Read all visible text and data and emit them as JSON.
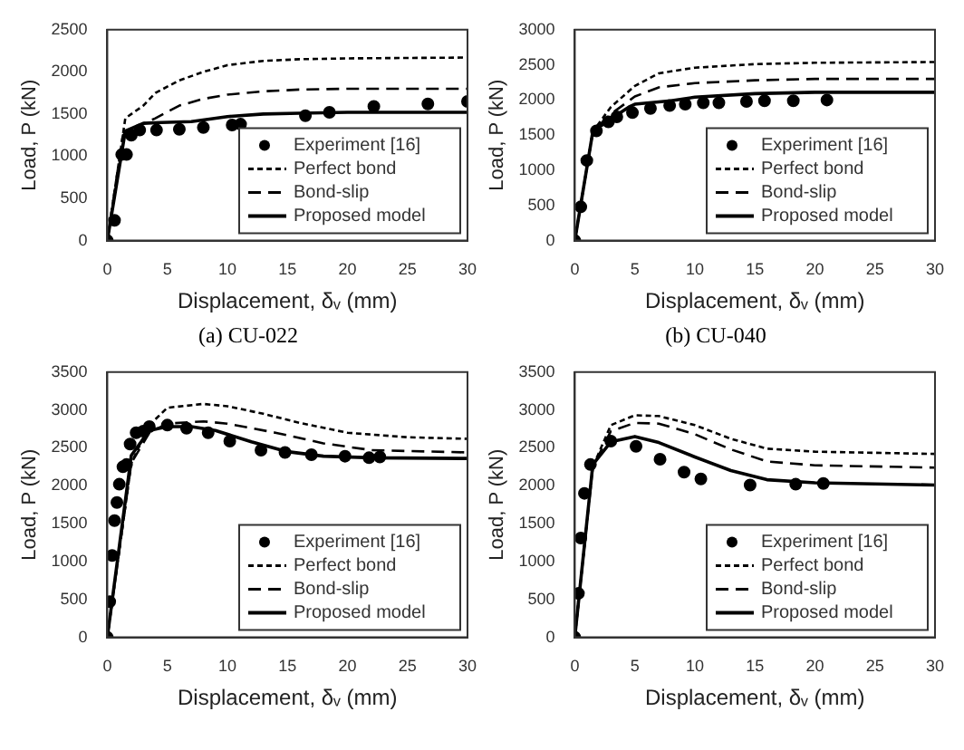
{
  "chart_data": [
    {
      "type": "line",
      "xlabel": "Displacement, δᵥ (mm)",
      "ylabel": "Load, P (kN)",
      "annotations": [
        "(a) CU-022"
      ],
      "xlim": [
        0,
        30
      ],
      "xticks": [
        0,
        5,
        10,
        15,
        20,
        25,
        30
      ],
      "ylim": [
        0,
        2500
      ],
      "yticks": [
        0,
        500,
        1000,
        1500,
        2000,
        2500
      ],
      "legend": "bottom right",
      "series": [
        {
          "name": "Experiment [16]",
          "type": "scatter",
          "marker": "circle",
          "color": "#000000",
          "x": [
            0,
            0.6,
            1.2,
            1.6,
            2,
            2.7,
            4.1,
            6,
            8,
            10.4,
            11.1,
            16.5,
            18.5,
            22.2,
            26.7,
            30
          ],
          "values": [
            0,
            240,
            1020,
            1020,
            1250,
            1310,
            1310,
            1320,
            1340,
            1370,
            1380,
            1480,
            1520,
            1590,
            1620,
            1650
          ]
        },
        {
          "name": "Perfect bond",
          "type": "line",
          "line_style": "dotted",
          "color": "#000000",
          "x": [
            0,
            1.5,
            3,
            4,
            6,
            8,
            10,
            13,
            16,
            20,
            30
          ],
          "values": [
            0,
            1450,
            1600,
            1750,
            1900,
            2000,
            2080,
            2130,
            2150,
            2160,
            2170
          ]
        },
        {
          "name": "Bond-slip",
          "type": "line",
          "line_style": "dashed",
          "color": "#000000",
          "x": [
            0,
            1.3,
            2.5,
            4,
            6,
            8,
            10,
            13,
            16,
            20,
            30
          ],
          "values": [
            0,
            1250,
            1350,
            1450,
            1600,
            1680,
            1730,
            1770,
            1790,
            1800,
            1800
          ]
        },
        {
          "name": "Proposed model",
          "type": "line",
          "line_style": "solid",
          "color": "#000000",
          "x": [
            0,
            1.5,
            3,
            4.5,
            7,
            10,
            13,
            16,
            20,
            30
          ],
          "values": [
            0,
            1300,
            1390,
            1400,
            1410,
            1470,
            1500,
            1510,
            1520,
            1520
          ]
        }
      ]
    },
    {
      "type": "line",
      "xlabel": "Displacement, δᵥ (mm)",
      "ylabel": "Load, P (kN)",
      "annotations": [
        "(b) CU-040"
      ],
      "xlim": [
        0,
        30
      ],
      "xticks": [
        0,
        5,
        10,
        15,
        20,
        25,
        30
      ],
      "ylim": [
        0,
        3000
      ],
      "yticks": [
        0,
        500,
        1000,
        1500,
        2000,
        2500,
        3000
      ],
      "legend": "bottom right",
      "series": [
        {
          "name": "Experiment [16]",
          "type": "scatter",
          "marker": "circle",
          "color": "#000000",
          "x": [
            0,
            0.5,
            1,
            1.8,
            2.8,
            3.5,
            4.8,
            6.3,
            7.9,
            9.2,
            10.7,
            12,
            14.3,
            15.8,
            18.2,
            21
          ],
          "values": [
            0,
            480,
            1140,
            1560,
            1690,
            1760,
            1820,
            1880,
            1920,
            1940,
            1960,
            1960,
            1980,
            1990,
            1990,
            2000
          ]
        },
        {
          "name": "Perfect bond",
          "type": "line",
          "line_style": "dotted",
          "color": "#000000",
          "x": [
            0,
            1.5,
            3,
            5,
            7,
            10,
            15,
            20,
            30
          ],
          "values": [
            0,
            1550,
            1900,
            2200,
            2380,
            2460,
            2510,
            2530,
            2540
          ]
        },
        {
          "name": "Bond-slip",
          "type": "line",
          "line_style": "dashed",
          "color": "#000000",
          "x": [
            0,
            1.5,
            3,
            5,
            7,
            10,
            15,
            20,
            30
          ],
          "values": [
            0,
            1550,
            1800,
            2050,
            2180,
            2240,
            2280,
            2300,
            2300
          ]
        },
        {
          "name": "Proposed model",
          "type": "line",
          "line_style": "solid",
          "color": "#000000",
          "x": [
            0,
            1.5,
            3,
            4.5,
            5,
            8,
            10,
            15,
            20,
            30
          ],
          "values": [
            0,
            1550,
            1730,
            1900,
            1940,
            1990,
            2040,
            2090,
            2110,
            2110
          ]
        }
      ]
    },
    {
      "type": "line",
      "xlabel": "Displacement, δᵥ (mm)",
      "ylabel": "Load, P (kN)",
      "xlim": [
        0,
        30
      ],
      "xticks": [
        0,
        5,
        10,
        15,
        20,
        25,
        30
      ],
      "ylim": [
        0,
        3500
      ],
      "yticks": [
        0,
        500,
        1000,
        1500,
        2000,
        2500,
        3000,
        3500
      ],
      "legend": "bottom right",
      "series": [
        {
          "name": "Experiment [16]",
          "type": "scatter",
          "marker": "circle",
          "color": "#000000",
          "x": [
            0,
            0.2,
            0.4,
            0.6,
            0.8,
            1,
            1.3,
            1.6,
            1.9,
            2.4,
            3,
            3.5,
            5,
            6.6,
            8.4,
            10.2,
            12.8,
            14.8,
            17,
            19.8,
            21.8,
            22.7
          ],
          "values": [
            0,
            470,
            1080,
            1540,
            1780,
            2020,
            2250,
            2280,
            2550,
            2700,
            2720,
            2780,
            2800,
            2760,
            2700,
            2590,
            2470,
            2440,
            2410,
            2390,
            2370,
            2380
          ]
        },
        {
          "name": "Perfect bond",
          "type": "line",
          "line_style": "dotted",
          "color": "#000000",
          "x": [
            0,
            2,
            3.5,
            5,
            8,
            10,
            13,
            16,
            20,
            25,
            30
          ],
          "values": [
            0,
            2300,
            2800,
            3030,
            3080,
            3050,
            2950,
            2830,
            2700,
            2640,
            2620
          ]
        },
        {
          "name": "Bond-slip",
          "type": "line",
          "line_style": "dashed",
          "color": "#000000",
          "x": [
            0,
            2,
            3.5,
            5,
            8,
            10,
            14,
            18,
            22,
            30
          ],
          "values": [
            0,
            2300,
            2700,
            2820,
            2850,
            2820,
            2700,
            2560,
            2470,
            2440
          ]
        },
        {
          "name": "Proposed model",
          "type": "line",
          "line_style": "solid",
          "color": "#000000",
          "x": [
            0,
            2,
            3.5,
            5,
            7,
            9,
            12,
            15,
            18,
            22,
            30
          ],
          "values": [
            0,
            2400,
            2730,
            2780,
            2780,
            2730,
            2580,
            2450,
            2390,
            2370,
            2360
          ]
        }
      ]
    },
    {
      "type": "line",
      "xlabel": "Displacement, δᵥ (mm)",
      "ylabel": "Load, P (kN)",
      "xlim": [
        0,
        30
      ],
      "xticks": [
        0,
        5,
        10,
        15,
        20,
        25,
        30
      ],
      "ylim": [
        0,
        3500
      ],
      "yticks": [
        0,
        500,
        1000,
        1500,
        2000,
        2500,
        3000,
        3500
      ],
      "legend": "bottom right",
      "series": [
        {
          "name": "Experiment [16]",
          "type": "scatter",
          "marker": "circle",
          "color": "#000000",
          "x": [
            0,
            0.3,
            0.5,
            0.8,
            1.3,
            3,
            5.1,
            7.1,
            9.1,
            10.5,
            14.6,
            18.4,
            20.7
          ],
          "values": [
            0,
            580,
            1310,
            1900,
            2280,
            2590,
            2520,
            2350,
            2180,
            2090,
            2010,
            2020,
            2030
          ]
        },
        {
          "name": "Perfect bond",
          "type": "line",
          "line_style": "dotted",
          "color": "#000000",
          "x": [
            0,
            1.5,
            3,
            5,
            7,
            10,
            13,
            16,
            20,
            30
          ],
          "values": [
            0,
            2250,
            2800,
            2930,
            2920,
            2800,
            2620,
            2490,
            2450,
            2420
          ]
        },
        {
          "name": "Bond-slip",
          "type": "line",
          "line_style": "dashed",
          "color": "#000000",
          "x": [
            0,
            1.5,
            3,
            5,
            7,
            10,
            13,
            16,
            20,
            30
          ],
          "values": [
            0,
            2250,
            2720,
            2830,
            2820,
            2680,
            2480,
            2320,
            2270,
            2240
          ]
        },
        {
          "name": "Proposed model",
          "type": "line",
          "line_style": "solid",
          "color": "#000000",
          "x": [
            0,
            1.5,
            3,
            5,
            7,
            10,
            13,
            16,
            20,
            30
          ],
          "values": [
            0,
            2280,
            2580,
            2650,
            2570,
            2380,
            2200,
            2080,
            2040,
            2010
          ]
        }
      ]
    }
  ]
}
